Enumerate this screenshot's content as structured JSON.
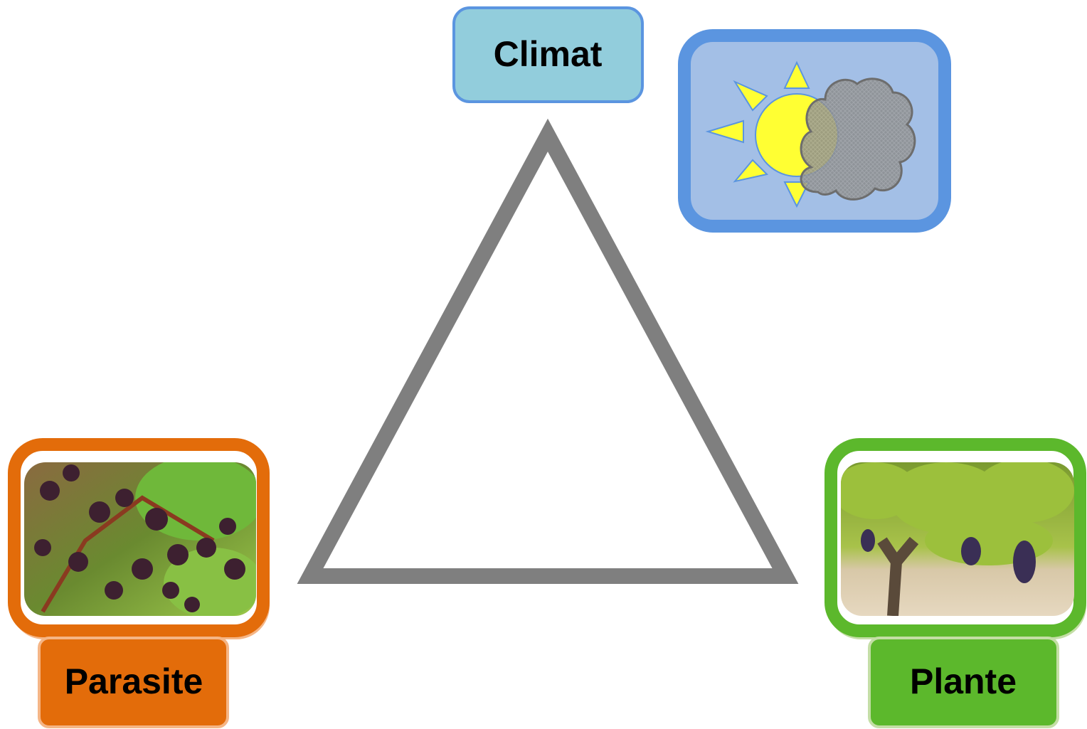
{
  "nodes": [
    {
      "label": "Climat"
    },
    {
      "label": "Parasite"
    },
    {
      "label": "Plante"
    }
  ]
}
